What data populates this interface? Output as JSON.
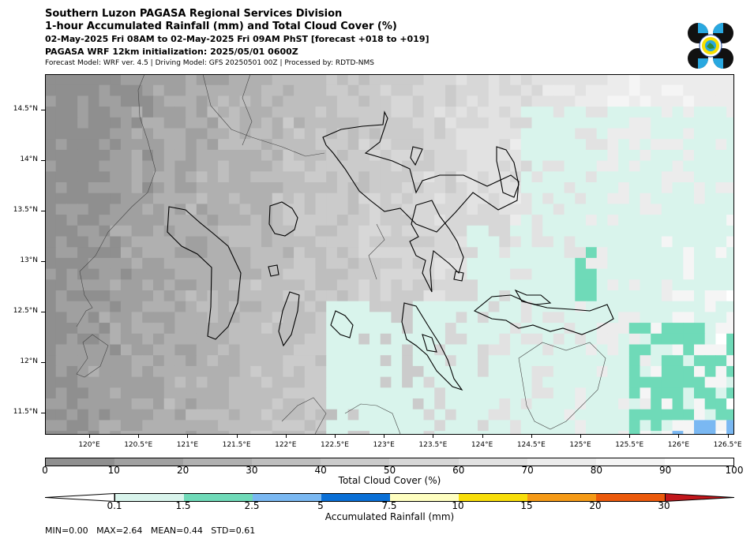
{
  "header": {
    "line1": "Southern Luzon PAGASA Regional Services Division",
    "line2": "1-hour Accumulated Rainfall (mm) and Total Cloud Cover (%)",
    "line3": "02-May-2025 Fri 08AM to 02-May-2025 Fri 09AM PhST [forecast +018 to +019]",
    "line4": "PAGASA WRF 12km initialization: 2025/05/01 0600Z",
    "line5": "Forecast Model: WRF ver. 4.5 | Driving Model: GFS 20250501 00Z | Processed by: RDTD-NMS"
  },
  "logo": {
    "icon": "pagasa-logo-icon",
    "colors": [
      "#111111",
      "#29a8e0",
      "#f7e000",
      "#1a3f8f"
    ]
  },
  "map": {
    "lat_labels": [
      "14.5°N",
      "14°N",
      "13.5°N",
      "13°N",
      "12.5°N",
      "12°N",
      "11.5°N"
    ],
    "lon_labels": [
      "120°E",
      "120.5°E",
      "121°E",
      "121.5°E",
      "122°E",
      "122.5°E",
      "123°E",
      "123.5°E",
      "124°E",
      "124.5°E",
      "125°E",
      "125.5°E",
      "126°E",
      "126.5°E"
    ],
    "lat_range": [
      11.3,
      14.85
    ],
    "lon_range": [
      119.55,
      126.55
    ]
  },
  "cloud_legend": {
    "title": "Total Cloud Cover (%)",
    "ticks": [
      "0",
      "10",
      "20",
      "30",
      "40",
      "50",
      "60",
      "70",
      "80",
      "90",
      "100"
    ],
    "colors": [
      "#8f8f8f",
      "#a0a0a0",
      "#b0b0b0",
      "#bebebe",
      "#cbcbcb",
      "#d7d7d7",
      "#e2e2e2",
      "#ececec",
      "#f5f5f5",
      "#ffffff"
    ]
  },
  "rain_legend": {
    "title": "Accumulated Rainfall (mm)",
    "ticks": [
      "0.1",
      "1.5",
      "2.5",
      "5",
      "7.5",
      "10",
      "15",
      "20",
      "30"
    ],
    "colors": [
      "#d9f4ec",
      "#6fdab8",
      "#7ab8f2",
      "#0a6fd6",
      "#fefec0",
      "#f8de0a",
      "#f59a16",
      "#ec5a0c",
      "#c2161b"
    ],
    "under_color": "#ffffff",
    "over_color": "#c2161b"
  },
  "stats": "MIN=0.00   MAX=2.64   MEAN=0.44   STD=0.61"
}
